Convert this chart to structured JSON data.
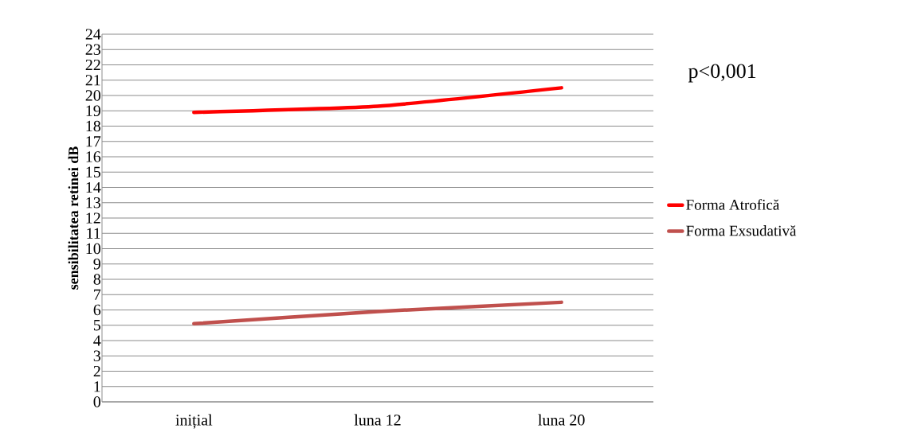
{
  "chart_data": {
    "type": "line",
    "ylabel": "sensibilitatea retinei dB",
    "categories": [
      "inițial",
      "luna 12",
      "luna 20"
    ],
    "series": [
      {
        "name": "Forma Atrofică",
        "color": "#ff0000",
        "values": [
          18.9,
          19.3,
          20.5
        ]
      },
      {
        "name": "Forma Exsudativă",
        "color": "#c0504d",
        "values": [
          5.1,
          5.9,
          6.5
        ]
      }
    ],
    "ylim": [
      0,
      24
    ],
    "yticks": [
      0,
      1,
      2,
      3,
      4,
      5,
      6,
      7,
      8,
      9,
      10,
      11,
      12,
      13,
      14,
      15,
      16,
      17,
      18,
      19,
      20,
      21,
      22,
      23,
      24
    ],
    "grid": "y",
    "legend": "right",
    "marker": "none",
    "line_style": "solid",
    "annotations": [
      "p<0,001"
    ]
  }
}
